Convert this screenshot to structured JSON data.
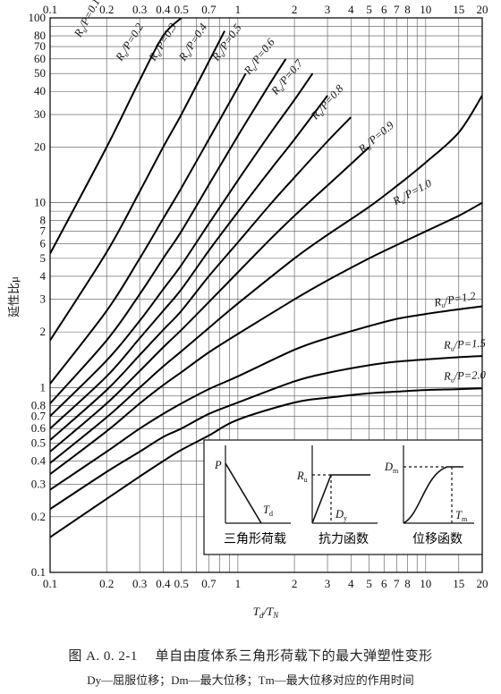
{
  "chart_data": {
    "type": "line",
    "xscale": "log",
    "yscale": "log",
    "xlim": [
      0.1,
      20
    ],
    "ylim": [
      0.1,
      100
    ],
    "x_tick_labels": [
      "0.1",
      "0.2",
      "0.3",
      "0.4",
      "0.5",
      "0.7",
      "1",
      "2",
      "3",
      "4",
      "5",
      "6",
      "7",
      "8",
      "10",
      "15",
      "20"
    ],
    "x_ticks": [
      0.1,
      0.2,
      0.3,
      0.4,
      0.5,
      0.7,
      1,
      2,
      3,
      4,
      5,
      6,
      7,
      8,
      10,
      15,
      20
    ],
    "y_tick_labels": [
      "0.1",
      "0.2",
      "0.3",
      "0.4",
      "0.5",
      "0.6",
      "0.7",
      "0.8",
      "1",
      "2",
      "3",
      "4",
      "5",
      "6",
      "7",
      "8",
      "10",
      "20",
      "30",
      "40",
      "50",
      "60",
      "70",
      "80",
      "100"
    ],
    "y_ticks": [
      0.1,
      0.2,
      0.3,
      0.4,
      0.5,
      0.6,
      0.7,
      0.8,
      1,
      2,
      3,
      4,
      5,
      6,
      7,
      8,
      10,
      20,
      30,
      40,
      50,
      60,
      70,
      80,
      100
    ],
    "xlabel_main": "T",
    "xlabel_sub1": "d",
    "xlabel_mid": "/T",
    "xlabel_sub2": "N",
    "ylabel": "延性比μ",
    "grid": true,
    "series": [
      {
        "name": "Ru/P=0.1",
        "x": [
          0.1,
          0.2,
          0.3,
          0.4,
          0.5
        ],
        "y": [
          5.3,
          20,
          46,
          80,
          100
        ]
      },
      {
        "name": "Ru/P=0.2",
        "x": [
          0.1,
          0.2,
          0.3,
          0.4,
          0.5,
          0.7,
          0.85
        ],
        "y": [
          1.8,
          5.4,
          11.5,
          20,
          30,
          58,
          85
        ]
      },
      {
        "name": "Ru/P=0.3",
        "x": [
          0.1,
          0.2,
          0.3,
          0.4,
          0.5,
          0.7,
          1,
          1.1
        ],
        "y": [
          1.05,
          2.6,
          5,
          8.2,
          12,
          22,
          42,
          50
        ]
      },
      {
        "name": "Ru/P=0.4",
        "x": [
          0.1,
          0.2,
          0.3,
          0.4,
          0.5,
          0.7,
          1,
          1.5,
          1.8
        ],
        "y": [
          0.82,
          1.8,
          3.2,
          5,
          7,
          12.5,
          23,
          45,
          60
        ]
      },
      {
        "name": "Ru/P=0.5",
        "x": [
          0.1,
          0.2,
          0.3,
          0.4,
          0.5,
          0.7,
          1,
          1.5,
          2,
          2.5
        ],
        "y": [
          0.7,
          1.4,
          2.3,
          3.4,
          4.6,
          7.7,
          13.2,
          24,
          36,
          50
        ]
      },
      {
        "name": "Ru/P=0.6",
        "x": [
          0.1,
          0.2,
          0.3,
          0.4,
          0.5,
          0.7,
          1,
          1.5,
          2,
          3
        ],
        "y": [
          0.6,
          1.15,
          1.85,
          2.6,
          3.4,
          5.5,
          8.9,
          15.2,
          22,
          38
        ]
      },
      {
        "name": "Ru/P=0.7",
        "x": [
          0.1,
          0.2,
          0.3,
          0.4,
          0.5,
          0.7,
          1,
          1.5,
          2,
          3,
          4
        ],
        "y": [
          0.52,
          0.97,
          1.5,
          2.05,
          2.6,
          4,
          6.1,
          9.9,
          13.7,
          21.5,
          29
        ]
      },
      {
        "name": "Ru/P=0.8",
        "x": [
          0.1,
          0.2,
          0.3,
          0.4,
          0.5,
          0.7,
          1,
          1.5,
          2,
          3,
          4,
          5
        ],
        "y": [
          0.45,
          0.82,
          1.23,
          1.65,
          2.05,
          2.9,
          4.2,
          6.4,
          8.5,
          12.4,
          16.2,
          20
        ]
      },
      {
        "name": "Ru/P=0.9",
        "x": [
          0.1,
          0.2,
          0.3,
          0.4,
          0.5,
          0.7,
          1,
          2,
          3,
          5,
          7,
          10,
          15,
          20
        ],
        "y": [
          0.39,
          0.69,
          1.0,
          1.3,
          1.57,
          2.1,
          2.85,
          5,
          6.7,
          9.5,
          12.3,
          16.5,
          24,
          38
        ]
      },
      {
        "name": "Ru/P=1.0",
        "x": [
          0.1,
          0.2,
          0.3,
          0.4,
          0.5,
          0.7,
          1,
          2,
          3,
          5,
          7,
          10,
          15,
          20
        ],
        "y": [
          0.34,
          0.58,
          0.82,
          1.03,
          1.21,
          1.55,
          1.95,
          3.0,
          3.8,
          5,
          5.9,
          7,
          8.5,
          10
        ]
      },
      {
        "name": "Ru/P=1.2",
        "x": [
          0.1,
          0.2,
          0.3,
          0.4,
          0.5,
          0.7,
          1,
          2,
          3,
          5,
          7,
          10,
          15,
          20
        ],
        "y": [
          0.28,
          0.45,
          0.6,
          0.72,
          0.82,
          0.98,
          1.15,
          1.6,
          1.85,
          2.15,
          2.35,
          2.5,
          2.65,
          2.75
        ]
      },
      {
        "name": "Ru/P=1.5",
        "x": [
          0.1,
          0.2,
          0.3,
          0.4,
          0.5,
          0.7,
          1,
          2,
          3,
          5,
          7,
          10,
          15,
          20
        ],
        "y": [
          0.22,
          0.35,
          0.45,
          0.54,
          0.6,
          0.72,
          0.83,
          1.08,
          1.2,
          1.32,
          1.38,
          1.42,
          1.46,
          1.48
        ]
      },
      {
        "name": "Ru/P=2.0",
        "x": [
          0.1,
          0.2,
          0.3,
          0.4,
          0.5,
          0.7,
          1,
          2,
          3,
          5,
          7,
          10,
          15,
          20
        ],
        "y": [
          0.155,
          0.25,
          0.33,
          0.4,
          0.46,
          0.55,
          0.67,
          0.83,
          0.88,
          0.93,
          0.95,
          0.97,
          0.98,
          0.99
        ]
      }
    ],
    "curve_label_prefix": "R",
    "curve_label_sub": "u",
    "curve_labels": [
      "/P=0.1",
      "/P=0.2",
      "/P=0.3",
      "/P=0.4",
      "/P=0.5",
      "/P=0.6",
      "/P=0.7",
      "/P=0.8",
      "/P=0.9",
      "/P=1.0",
      "/P=1.2",
      "/P=1.5",
      "/P=2.0"
    ],
    "inset": {
      "panels": [
        {
          "caption": "三角形荷载",
          "label_a": "P",
          "label_b_main": "T",
          "label_b_sub": "d"
        },
        {
          "caption": "抗力函数",
          "label_a_main": "R",
          "label_a_sub": "u",
          "label_b_main": "D",
          "label_b_sub": "y"
        },
        {
          "caption": "位移函数",
          "label_a_main": "D",
          "label_a_sub": "m",
          "label_b_main": "T",
          "label_b_sub": "m"
        }
      ]
    }
  },
  "caption": {
    "main": "图 A. 0. 2-1　 单自由度体系三角形荷载下的最大弹塑性变形",
    "sub": "Dy—屈服位移；Dm—最大位移；Tm—最大位移对应的作用时间"
  }
}
